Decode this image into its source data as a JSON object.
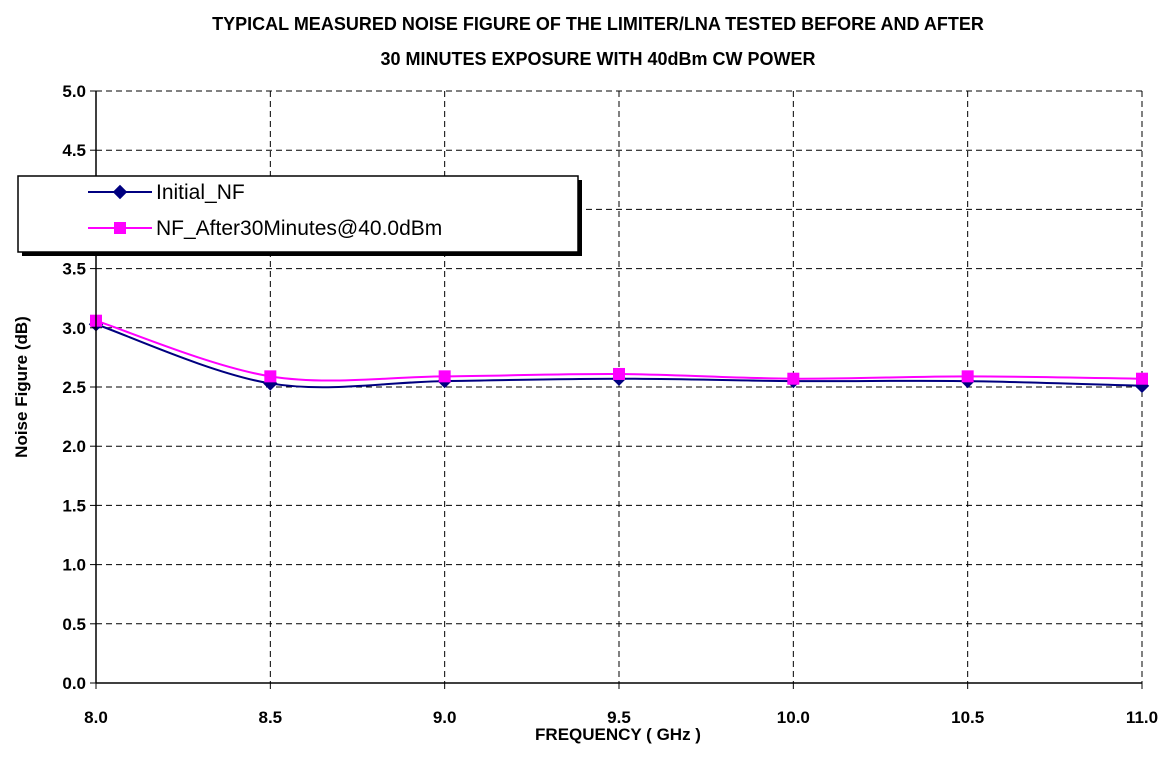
{
  "chart_data": {
    "type": "line",
    "title_lines": [
      "TYPICAL MEASURED NOISE FIGURE OF THE LIMITER/LNA TESTED BEFORE AND AFTER",
      "30 MINUTES EXPOSURE WITH 40dBm CW POWER"
    ],
    "xlabel": "FREQUENCY ( GHz )",
    "ylabel": "Noise Figure (dB)",
    "xlim": [
      8.0,
      11.0
    ],
    "ylim": [
      0.0,
      5.0
    ],
    "x_ticks": [
      "8.0",
      "8.5",
      "9.0",
      "9.5",
      "10.0",
      "10.5",
      "11.0"
    ],
    "y_ticks": [
      "0.0",
      "0.5",
      "1.0",
      "1.5",
      "2.0",
      "2.5",
      "3.0",
      "3.5",
      "4.0",
      "4.5",
      "5.0"
    ],
    "grid": true,
    "legend_position": "upper-left",
    "series": [
      {
        "name": "Initial_NF",
        "color": "#000080",
        "marker": "diamond",
        "x": [
          8.0,
          8.5,
          9.0,
          9.5,
          10.0,
          10.5,
          11.0
        ],
        "y": [
          3.03,
          2.53,
          2.55,
          2.57,
          2.55,
          2.55,
          2.51
        ]
      },
      {
        "name": "NF_After30Minutes@40.0dBm",
        "color": "#ff00ff",
        "marker": "square",
        "x": [
          8.0,
          8.5,
          9.0,
          9.5,
          10.0,
          10.5,
          11.0
        ],
        "y": [
          3.06,
          2.59,
          2.59,
          2.61,
          2.57,
          2.59,
          2.57
        ]
      }
    ]
  }
}
